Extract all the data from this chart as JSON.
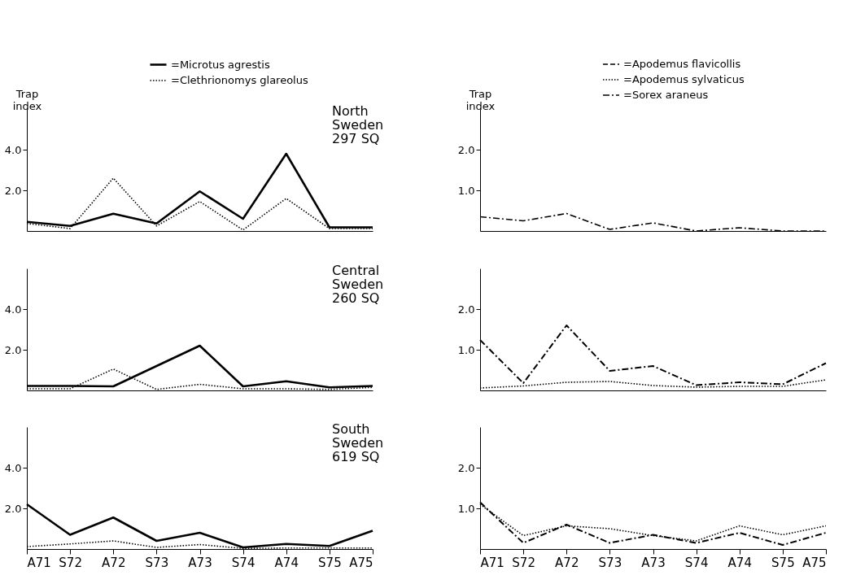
{
  "chart_data": [
    {
      "type": "line",
      "ylabel": "Trap index",
      "categories": [
        null,
        null,
        null,
        null,
        null,
        null,
        null,
        null,
        null
      ],
      "ylim": [
        0,
        6
      ],
      "yticks": [
        {
          "value": 2,
          "label": "2.0"
        },
        {
          "value": 4,
          "label": "4.0"
        }
      ],
      "tick_labels": "y",
      "legend": "top",
      "annotations": [
        "North\nSweden\n297 SQ"
      ],
      "series": [
        {
          "name": "=Microtus agrestis",
          "color": "#000000",
          "line_style": "solid",
          "values": [
            0.45,
            0.25,
            0.85,
            0.37,
            1.95,
            0.6,
            3.8,
            0.18,
            0.18
          ]
        },
        {
          "name": "=Clethrionomys glareolus",
          "color": "#000000",
          "line_style": "dotted",
          "values": [
            0.37,
            0.12,
            2.6,
            0.25,
            1.45,
            0.05,
            1.6,
            0.12,
            0.12
          ]
        }
      ]
    },
    {
      "type": "line",
      "ylabel": "Trap index",
      "categories": [
        null,
        null,
        null,
        null,
        null,
        null,
        null,
        null,
        null
      ],
      "ylim": [
        0,
        3
      ],
      "yticks": [
        {
          "value": 1,
          "label": "1.0"
        },
        {
          "value": 2,
          "label": "2.0"
        }
      ],
      "tick_labels": "y",
      "legend": "top",
      "series": [
        {
          "name": "=Apodemus flavicollis",
          "color": "#000000",
          "line_style": "dashed",
          "values": [
            null,
            null,
            null,
            null,
            null,
            null,
            null,
            null,
            null
          ]
        },
        {
          "name": "=Apodemus sylvaticus",
          "color": "#000000",
          "line_style": "dotted",
          "values": [
            null,
            null,
            null,
            null,
            null,
            null,
            null,
            null,
            null
          ]
        },
        {
          "name": "=Sorex araneus",
          "color": "#000000",
          "line_style": "dashdot",
          "values": [
            0.35,
            0.25,
            0.43,
            0.04,
            0.2,
            0.0,
            0.08,
            0.0,
            0.0
          ]
        }
      ]
    },
    {
      "type": "line",
      "categories": [
        null,
        null,
        null,
        null,
        null,
        null,
        null,
        null,
        null
      ],
      "ylim": [
        0,
        6
      ],
      "yticks": [
        {
          "value": 2,
          "label": "2.0"
        },
        {
          "value": 4,
          "label": "4.0"
        }
      ],
      "tick_labels": "y",
      "annotations": [
        "Central\nSweden\n260 SQ"
      ],
      "series": [
        {
          "color": "#000000",
          "line_style": "solid",
          "values": [
            0.22,
            0.22,
            0.2,
            1.2,
            2.2,
            0.2,
            0.45,
            0.15,
            0.22
          ]
        },
        {
          "color": "#000000",
          "line_style": "dotted",
          "values": [
            0.08,
            0.08,
            1.05,
            0.05,
            0.3,
            0.08,
            0.08,
            0.05,
            0.15
          ]
        }
      ]
    },
    {
      "type": "line",
      "categories": [
        null,
        null,
        null,
        null,
        null,
        null,
        null,
        null,
        null
      ],
      "ylim": [
        0,
        3
      ],
      "yticks": [
        {
          "value": 1,
          "label": "1.0"
        },
        {
          "value": 2,
          "label": "2.0"
        }
      ],
      "tick_labels": "y",
      "series": [
        {
          "color": "#000000",
          "line_style": "dotted",
          "values": [
            0.06,
            0.11,
            0.2,
            0.22,
            0.12,
            0.08,
            0.1,
            0.1,
            0.26
          ]
        },
        {
          "color": "#000000",
          "line_style": "dashdot",
          "values": [
            1.24,
            0.18,
            1.6,
            0.48,
            0.6,
            0.13,
            0.2,
            0.15,
            0.67
          ]
        }
      ]
    },
    {
      "type": "line",
      "categories": [
        "A71",
        "S72",
        "A72",
        "S73",
        "A73",
        "S74",
        "A74",
        "S75",
        "A75"
      ],
      "ylim": [
        0,
        6
      ],
      "yticks": [
        {
          "value": 2,
          "label": "2.0"
        },
        {
          "value": 4,
          "label": "4.0"
        }
      ],
      "annotations": [
        "South\nSweden\n619 SQ"
      ],
      "series": [
        {
          "color": "#000000",
          "line_style": "solid",
          "values": [
            2.2,
            0.7,
            1.55,
            0.4,
            0.8,
            0.08,
            0.25,
            0.15,
            0.9
          ]
        },
        {
          "color": "#000000",
          "line_style": "dotted",
          "values": [
            0.12,
            0.25,
            0.4,
            0.08,
            0.22,
            0.03,
            0.05,
            0.05,
            0.05
          ]
        }
      ]
    },
    {
      "type": "line",
      "categories": [
        "A71",
        "S72",
        "A72",
        "S73",
        "A73",
        "S74",
        "A74",
        "S75",
        "A75"
      ],
      "ylim": [
        0,
        3
      ],
      "yticks": [
        {
          "value": 1,
          "label": "1.0"
        },
        {
          "value": 2,
          "label": "2.0"
        }
      ],
      "series": [
        {
          "color": "#000000",
          "line_style": "dotted",
          "values": [
            1.1,
            0.33,
            0.57,
            0.5,
            0.33,
            0.2,
            0.57,
            0.35,
            0.57
          ]
        },
        {
          "color": "#000000",
          "line_style": "dashdot",
          "values": [
            1.15,
            0.15,
            0.6,
            0.15,
            0.35,
            0.15,
            0.4,
            0.1,
            0.4
          ]
        }
      ]
    }
  ]
}
